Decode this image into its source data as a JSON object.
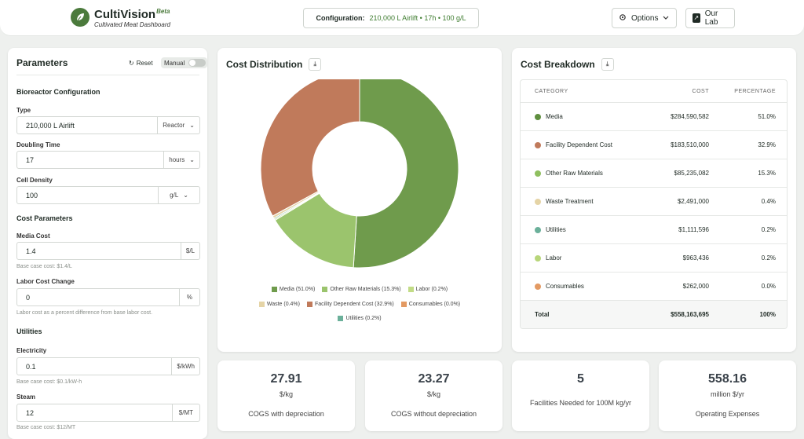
{
  "header": {
    "app_name": "CultiVision",
    "beta": "Beta",
    "subtitle": "Cultivated Meat Dashboard",
    "config_label": "Configuration:",
    "config_value": "210,000 L Airlift • 17h • 100 g/L",
    "options_label": "Options",
    "lab_label": "Our Lab"
  },
  "params": {
    "title": "Parameters",
    "reset_label": "Reset",
    "manual_label": "Manual",
    "bioreactor_section": "Bioreactor Configuration",
    "type_label": "Type",
    "type_value": "210,000 L Airlift",
    "type_unit": "Reactor",
    "doubling_label": "Doubling Time",
    "doubling_value": "17",
    "doubling_unit": "hours",
    "density_label": "Cell Density",
    "density_value": "100",
    "density_unit": "g/L",
    "cost_section": "Cost Parameters",
    "media_label": "Media Cost",
    "media_value": "1.4",
    "media_unit": "$/L",
    "media_hint": "Base case cost: $1.4/L",
    "labor_label": "Labor Cost Change",
    "labor_value": "0",
    "labor_unit": "%",
    "labor_hint": "Labor cost as a percent difference from base labor cost.",
    "utilities_section": "Utilities",
    "elec_label": "Electricity",
    "elec_value": "0.1",
    "elec_unit": "$/kWh",
    "elec_hint": "Base case cost: $0.1/kW-h",
    "steam_label": "Steam",
    "steam_value": "12",
    "steam_unit": "$/MT",
    "steam_hint": "Base case cost: $12/MT"
  },
  "cost_distribution": {
    "title": "Cost Distribution",
    "legend": [
      {
        "label": "Media (51.0%)",
        "color": "#6f9b4c"
      },
      {
        "label": "Other Raw Materials (15.3%)",
        "color": "#9bc46d"
      },
      {
        "label": "Labor (0.2%)",
        "color": "#c2dc86"
      },
      {
        "label": "Waste (0.4%)",
        "color": "#e5d4a6"
      },
      {
        "label": "Facility Dependent Cost (32.9%)",
        "color": "#c07a5b"
      },
      {
        "label": "Consumables (0.0%)",
        "color": "#e39a63"
      },
      {
        "label": "Utilities (0.2%)",
        "color": "#6bb09a"
      }
    ]
  },
  "chart_data": {
    "type": "pie",
    "title": "Cost Distribution",
    "slices": [
      {
        "label": "Media",
        "value": 51.0,
        "color": "#6f9b4c"
      },
      {
        "label": "Other Raw Materials",
        "value": 15.3,
        "color": "#9bc46d"
      },
      {
        "label": "Labor",
        "value": 0.2,
        "color": "#c2dc86"
      },
      {
        "label": "Waste",
        "value": 0.4,
        "color": "#e5d4a6"
      },
      {
        "label": "Facility Dependent Cost",
        "value": 32.9,
        "color": "#c07a5b"
      },
      {
        "label": "Consumables",
        "value": 0.0,
        "color": "#e39a63"
      },
      {
        "label": "Utilities",
        "value": 0.2,
        "color": "#6bb09a"
      }
    ]
  },
  "cost_breakdown": {
    "title": "Cost Breakdown",
    "headers": {
      "category": "CATEGORY",
      "cost": "COST",
      "percentage": "PERCENTAGE"
    },
    "rows": [
      {
        "category": "Media",
        "cost": "$284,590,582",
        "pct": "51.0%",
        "color": "#5f8f3f"
      },
      {
        "category": "Facility Dependent Cost",
        "cost": "$183,510,000",
        "pct": "32.9%",
        "color": "#c07a5b"
      },
      {
        "category": "Other Raw Materials",
        "cost": "$85,235,082",
        "pct": "15.3%",
        "color": "#8fbf5f"
      },
      {
        "category": "Waste Treatment",
        "cost": "$2,491,000",
        "pct": "0.4%",
        "color": "#e5d4a6"
      },
      {
        "category": "Utilities",
        "cost": "$1,111,596",
        "pct": "0.2%",
        "color": "#6bb09a"
      },
      {
        "category": "Labor",
        "cost": "$963,436",
        "pct": "0.2%",
        "color": "#b8d67a"
      },
      {
        "category": "Consumables",
        "cost": "$262,000",
        "pct": "0.0%",
        "color": "#e39a63"
      }
    ],
    "total": {
      "category": "Total",
      "cost": "$558,163,695",
      "pct": "100%"
    }
  },
  "metrics": [
    {
      "value": "27.91",
      "unit": "$/kg",
      "label": "COGS with depreciation"
    },
    {
      "value": "23.27",
      "unit": "$/kg",
      "label": "COGS without depreciation"
    },
    {
      "value": "5",
      "unit": "",
      "label": "Facilities Needed for 100M kg/yr"
    },
    {
      "value": "558.16",
      "unit": "million $/yr",
      "label": "Operating Expenses"
    }
  ]
}
